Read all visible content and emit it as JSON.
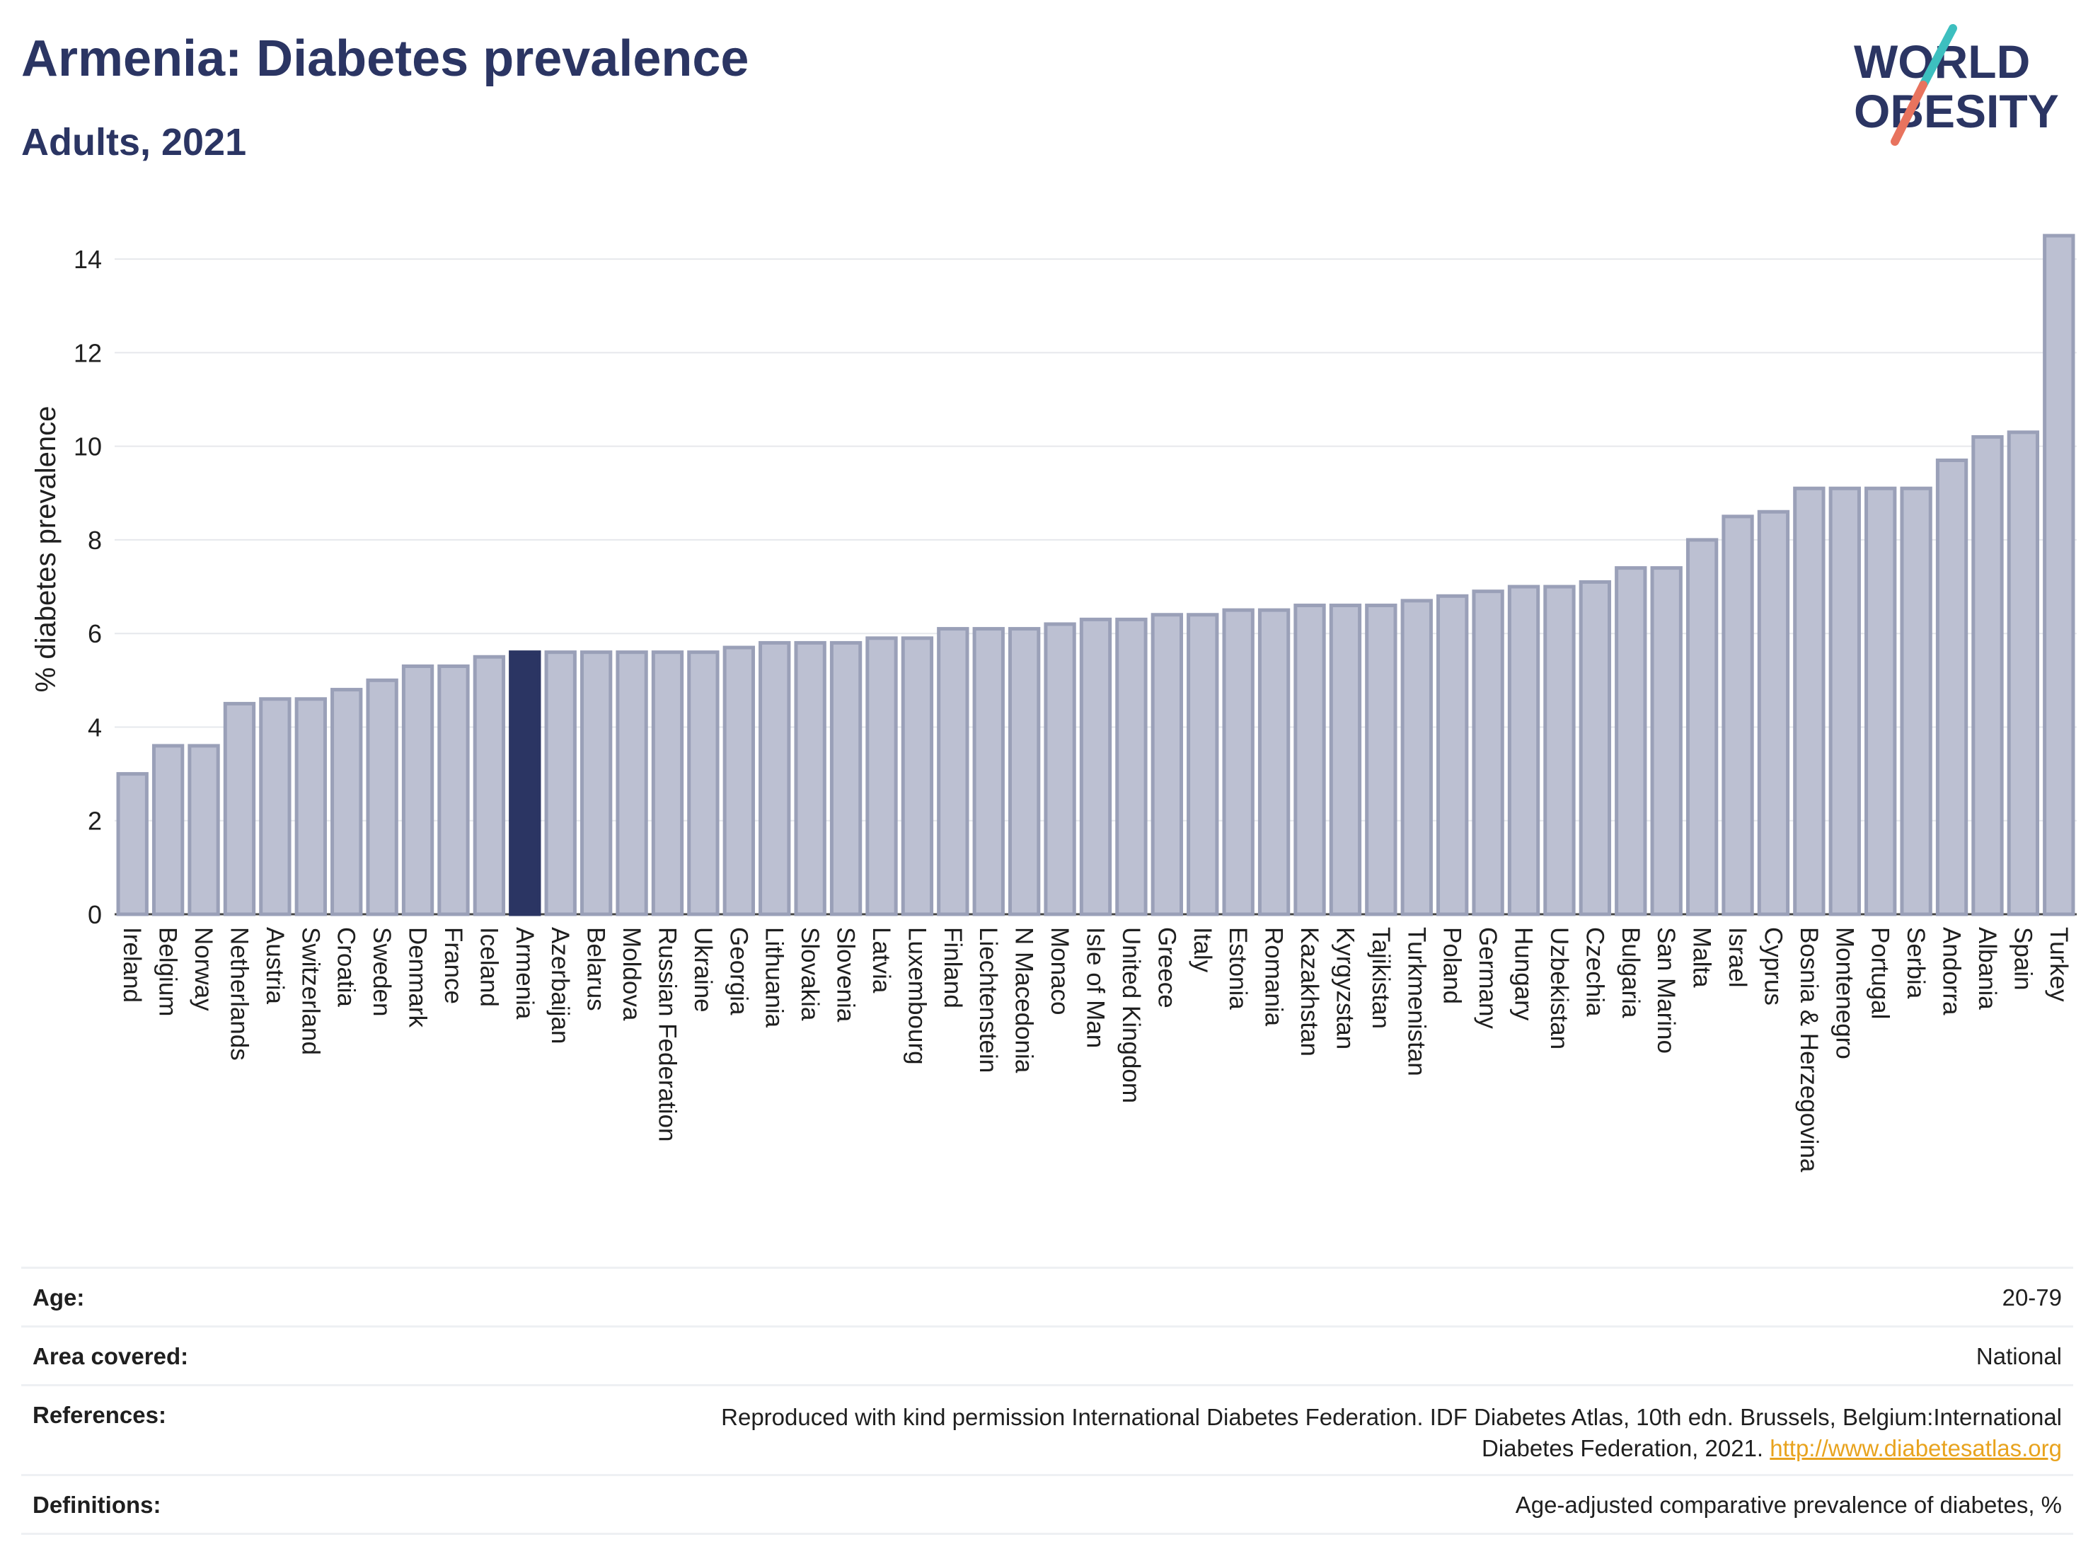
{
  "header": {
    "title": "Armenia: Diabetes prevalence",
    "subtitle": "Adults, 2021"
  },
  "logo": {
    "line1": "WORLD",
    "line2": "OBESITY"
  },
  "colors": {
    "bar": "#bcc0d2",
    "bar_stroke": "#9aa0b8",
    "highlight": "#2b3563",
    "title": "#2b3563",
    "logo_teal": "#3dbfbf",
    "logo_coral": "#e8735e",
    "link": "#e8a31e"
  },
  "chart_data": {
    "type": "bar",
    "ylabel": "% diabetes prevalence",
    "ylim": [
      0,
      15
    ],
    "yticks": [
      0,
      2,
      4,
      6,
      8,
      10,
      12,
      14
    ],
    "highlight": "Armenia",
    "grid": true,
    "categories": [
      "Ireland",
      "Belgium",
      "Norway",
      "Netherlands",
      "Austria",
      "Switzerland",
      "Croatia",
      "Sweden",
      "Denmark",
      "France",
      "Iceland",
      "Armenia",
      "Azerbaijan",
      "Belarus",
      "Moldova",
      "Russian Federation",
      "Ukraine",
      "Georgia",
      "Lithuania",
      "Slovakia",
      "Slovenia",
      "Latvia",
      "Luxembourg",
      "Finland",
      "Liechtenstein",
      "N Macedonia",
      "Monaco",
      "Isle of Man",
      "United Kingdom",
      "Greece",
      "Italy",
      "Estonia",
      "Romania",
      "Kazakhstan",
      "Kyrgyzstan",
      "Tajikistan",
      "Turkmenistan",
      "Poland",
      "Germany",
      "Hungary",
      "Uzbekistan",
      "Czechia",
      "Bulgaria",
      "San Marino",
      "Malta",
      "Israel",
      "Cyprus",
      "Bosnia & Herzegovina",
      "Montenegro",
      "Portugal",
      "Serbia",
      "Andorra",
      "Albania",
      "Spain",
      "Turkey"
    ],
    "values": [
      3.0,
      3.6,
      3.6,
      4.5,
      4.6,
      4.6,
      4.8,
      5.0,
      5.3,
      5.3,
      5.5,
      5.6,
      5.6,
      5.6,
      5.6,
      5.6,
      5.6,
      5.7,
      5.8,
      5.8,
      5.8,
      5.9,
      5.9,
      6.1,
      6.1,
      6.1,
      6.2,
      6.3,
      6.3,
      6.4,
      6.4,
      6.5,
      6.5,
      6.6,
      6.6,
      6.6,
      6.7,
      6.8,
      6.9,
      7.0,
      7.0,
      7.1,
      7.4,
      7.4,
      8.0,
      8.5,
      8.6,
      9.1,
      9.1,
      9.1,
      9.1,
      9.7,
      10.2,
      10.3,
      14.5
    ]
  },
  "info": {
    "rows": [
      {
        "label": "Age:",
        "value": "20-79"
      },
      {
        "label": "Area covered:",
        "value": "National"
      },
      {
        "label": "References:",
        "value": "Reproduced with kind permission International Diabetes Federation.  IDF Diabetes Atlas, 10th edn. Brussels, Belgium:International",
        "value2": "Diabetes Federation, 2021. ",
        "link": "http://www.diabetesatlas.org"
      },
      {
        "label": "Definitions:",
        "value": "Age-adjusted comparative prevalence of diabetes, %"
      }
    ]
  }
}
